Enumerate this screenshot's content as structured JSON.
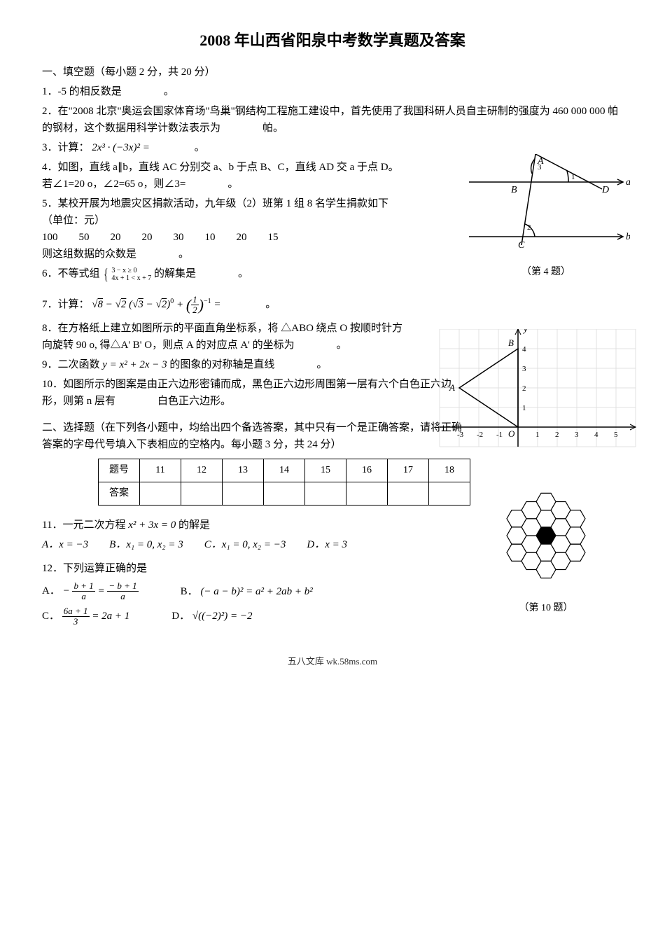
{
  "title": "2008 年山西省阳泉中考数学真题及答案",
  "section1": "一、填空题（每小题 2 分，共 20 分）",
  "q1": "1．-5 的相反数是　　　　。",
  "q2": "2．在\"2008 北京\"奥运会国家体育场\"鸟巢\"钢结构工程施工建设中，首先使用了我国科研人员自主研制的强度为 460 000 000 帕的钢材，这个数据用科学计数法表示为　　　　帕。",
  "q3_pre": "3．计算：",
  "q3_math": "2x³ · (−3x)² =",
  "q3_post": "　　　　。",
  "q4": "4．如图，直线 a∥b，直线 AC 分别交 a、b 于点 B、C，直线 AD 交 a 于点 D。若∠1=20 o，∠2=65 o，则∠3=　　　　。",
  "q5_a": "5．某校开展为地震灾区捐款活动，九年级（2）班第 1 组 8 名学生捐款如下（单位：元）",
  "q5_data": "100　　50　　20　　20　　30　　10　　20　　15",
  "q5_b": "则这组数据的众数是　　　　。",
  "q6_pre": "6．不等式组",
  "q6_sys_top": "3 − x ≥ 0",
  "q6_sys_bot": "4x + 1 < x + 7",
  "q6_post": "的解集是　　　　。",
  "q7_pre": "7．计算：",
  "q7_math": "√8 − √2 (√3 − √2)⁰ + (1/2)⁻¹ =",
  "q7_post": "　　　　。",
  "q8": "8．在方格纸上建立如图所示的平面直角坐标系，将 △ABO 绕点 O 按顺时针方向旋转 90 o, 得△A' B' O，则点 A 的对应点 A' 的坐标为　　　　。",
  "q9_pre": "9．二次函数",
  "q9_math": "y = x² + 2x − 3",
  "q9_post": "的图象的对称轴是直线　　　　。",
  "q10": "10．如图所示的图案是由正六边形密铺而成，黑色正六边形周围第一层有六个白色正六边形，则第 n 层有　　　　白色正六边形。",
  "section2": "二、选择题（在下列各小题中，均给出四个备选答案，其中只有一个是正确答案，请将正确答案的字母代号填入下表相应的空格内。每小题 3 分，共 24 分）",
  "table_head": "题号",
  "table_row2": "答案",
  "table_nums": [
    "11",
    "12",
    "13",
    "14",
    "15",
    "16",
    "17",
    "18"
  ],
  "q11_pre": "11．一元二次方程",
  "q11_math": "x² + 3x = 0",
  "q11_post": "的解是",
  "q11_choices": {
    "A": "A．x = −3",
    "B": "B．x₁ = 0, x₂ = 3",
    "C": "C．x₁ = 0, x₂ = −3",
    "D": "D．x = 3"
  },
  "q12": "12．下列运算正确的是",
  "q12_choices_text": {
    "A_pre": "A．",
    "B_pre": "B．",
    "C_pre": "C．",
    "D_pre": "D．"
  },
  "q12_A_lhs_n": "b + 1",
  "q12_A_lhs_d": "a",
  "q12_A_rhs_n": "− b + 1",
  "q12_A_rhs_d": "a",
  "q12_B": "(− a − b)² = a² + 2ab + b²",
  "q12_C_n": "6a + 1",
  "q12_C_d": "3",
  "q12_C_rhs": " = 2a + 1",
  "q12_D": "√((−2)²) = −2",
  "fig4_caption": "（第 4 题）",
  "fig10_caption": "（第 10 题）",
  "footer": "五八文库 wk.58ms.com",
  "fig4": {
    "labels": {
      "A": "A",
      "B": "B",
      "C": "C",
      "D": "D",
      "a": "a",
      "b": "b",
      "ang1": "1",
      "ang2": "2",
      "ang3": "3"
    },
    "stroke": "#000000"
  },
  "fig8": {
    "grid_color": "#e0e0e0",
    "axis_color": "#000000",
    "labels": {
      "O": "O",
      "A": "A",
      "B": "B",
      "x": "x",
      "y": "y"
    },
    "x_ticks": [
      "-3",
      "-2",
      "-1",
      "1",
      "2",
      "3",
      "4",
      "5"
    ],
    "y_ticks": [
      "1",
      "2",
      "3",
      "4"
    ],
    "A": [
      -3,
      2
    ],
    "B": [
      0,
      4
    ]
  },
  "fig10": {
    "fill_black": "#000000",
    "fill_white": "#ffffff",
    "stroke": "#000000",
    "rings": 2
  }
}
